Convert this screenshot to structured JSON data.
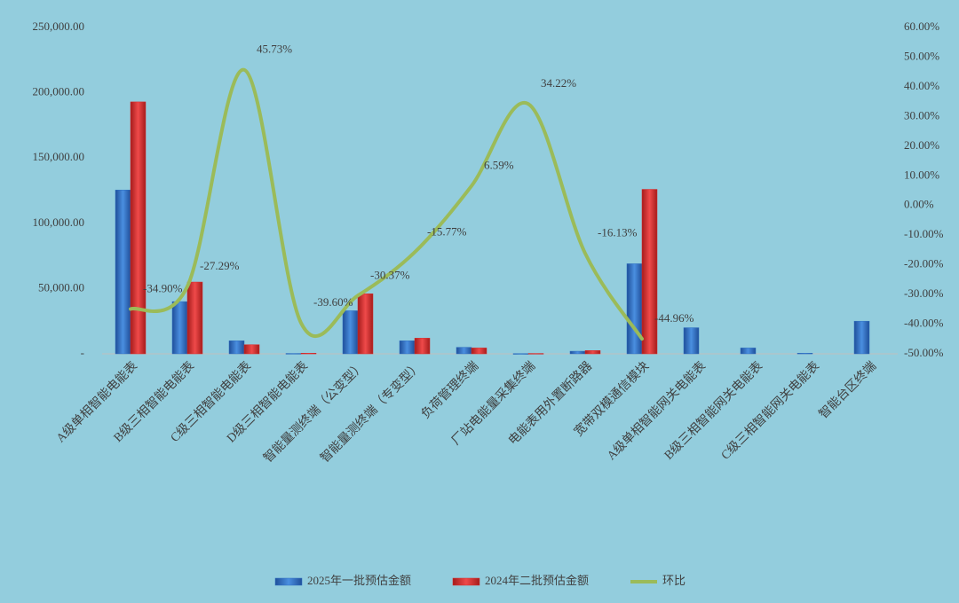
{
  "chart_data": {
    "type": "bar_line",
    "categories": [
      "A级单相智能电能表",
      "B级三相智能电能表",
      "C级三相智能电能表",
      "D级三相智能电能表",
      "智能量测终端（公变型）",
      "智能量测终端（专变型）",
      "负荷管理终端",
      "厂站电能量采集终端",
      "电能表用外置断路器",
      "宽带双模通信模块",
      "A级单相智能网关电能表",
      "B级三相智能网关电能表",
      "C级三相智能网关电能表",
      "智能台区终端"
    ],
    "series": [
      {
        "name": "2025年一批预估金额",
        "color": "#2e6fc0",
        "values": [
          125500,
          40000,
          10000,
          300,
          33000,
          10000,
          5000,
          200,
          2000,
          69000,
          20000,
          4500,
          500,
          25000
        ]
      },
      {
        "name": "2024年二批预估金额",
        "color": "#d92b2b",
        "values": [
          193000,
          55000,
          7000,
          500,
          46000,
          12000,
          4500,
          300,
          2500,
          126000,
          null,
          null,
          null,
          null
        ]
      },
      {
        "name": "环比",
        "color": "#9bbb59",
        "axis": "y2",
        "values": [
          -34.9,
          -27.29,
          45.73,
          -39.6,
          -30.37,
          -15.77,
          6.59,
          34.22,
          -16.13,
          -44.96,
          null,
          null,
          null,
          null
        ],
        "value_labels": [
          "-34.90%",
          "-27.29%",
          "45.73%",
          "-39.60%",
          "-30.37%",
          "-15.77%",
          "6.59%",
          "34.22%",
          "-16.13%",
          "-44.96%",
          null,
          null,
          null,
          null
        ]
      }
    ],
    "ylim": [
      0,
      250000
    ],
    "yticks": [
      {
        "value": 0,
        "label": "-"
      },
      {
        "value": 50000,
        "label": "50,000.00"
      },
      {
        "value": 100000,
        "label": "100,000.00"
      },
      {
        "value": 150000,
        "label": "150,000.00"
      },
      {
        "value": 200000,
        "label": "200,000.00"
      },
      {
        "value": 250000,
        "label": "250,000.00"
      }
    ],
    "y2lim": [
      -50,
      60
    ],
    "y2ticks": [
      {
        "value": -50,
        "label": "-50.00%"
      },
      {
        "value": -40,
        "label": "-40.00%"
      },
      {
        "value": -30,
        "label": "-30.00%"
      },
      {
        "value": -20,
        "label": "-20.00%"
      },
      {
        "value": -10,
        "label": "-10.00%"
      },
      {
        "value": 0,
        "label": "0.00%"
      },
      {
        "value": 10,
        "label": "10.00%"
      },
      {
        "value": 20,
        "label": "20.00%"
      },
      {
        "value": 30,
        "label": "30.00%"
      },
      {
        "value": 40,
        "label": "40.00%"
      },
      {
        "value": 50,
        "label": "50.00%"
      },
      {
        "value": 60,
        "label": "60.00%"
      }
    ],
    "legend": "bottom"
  }
}
